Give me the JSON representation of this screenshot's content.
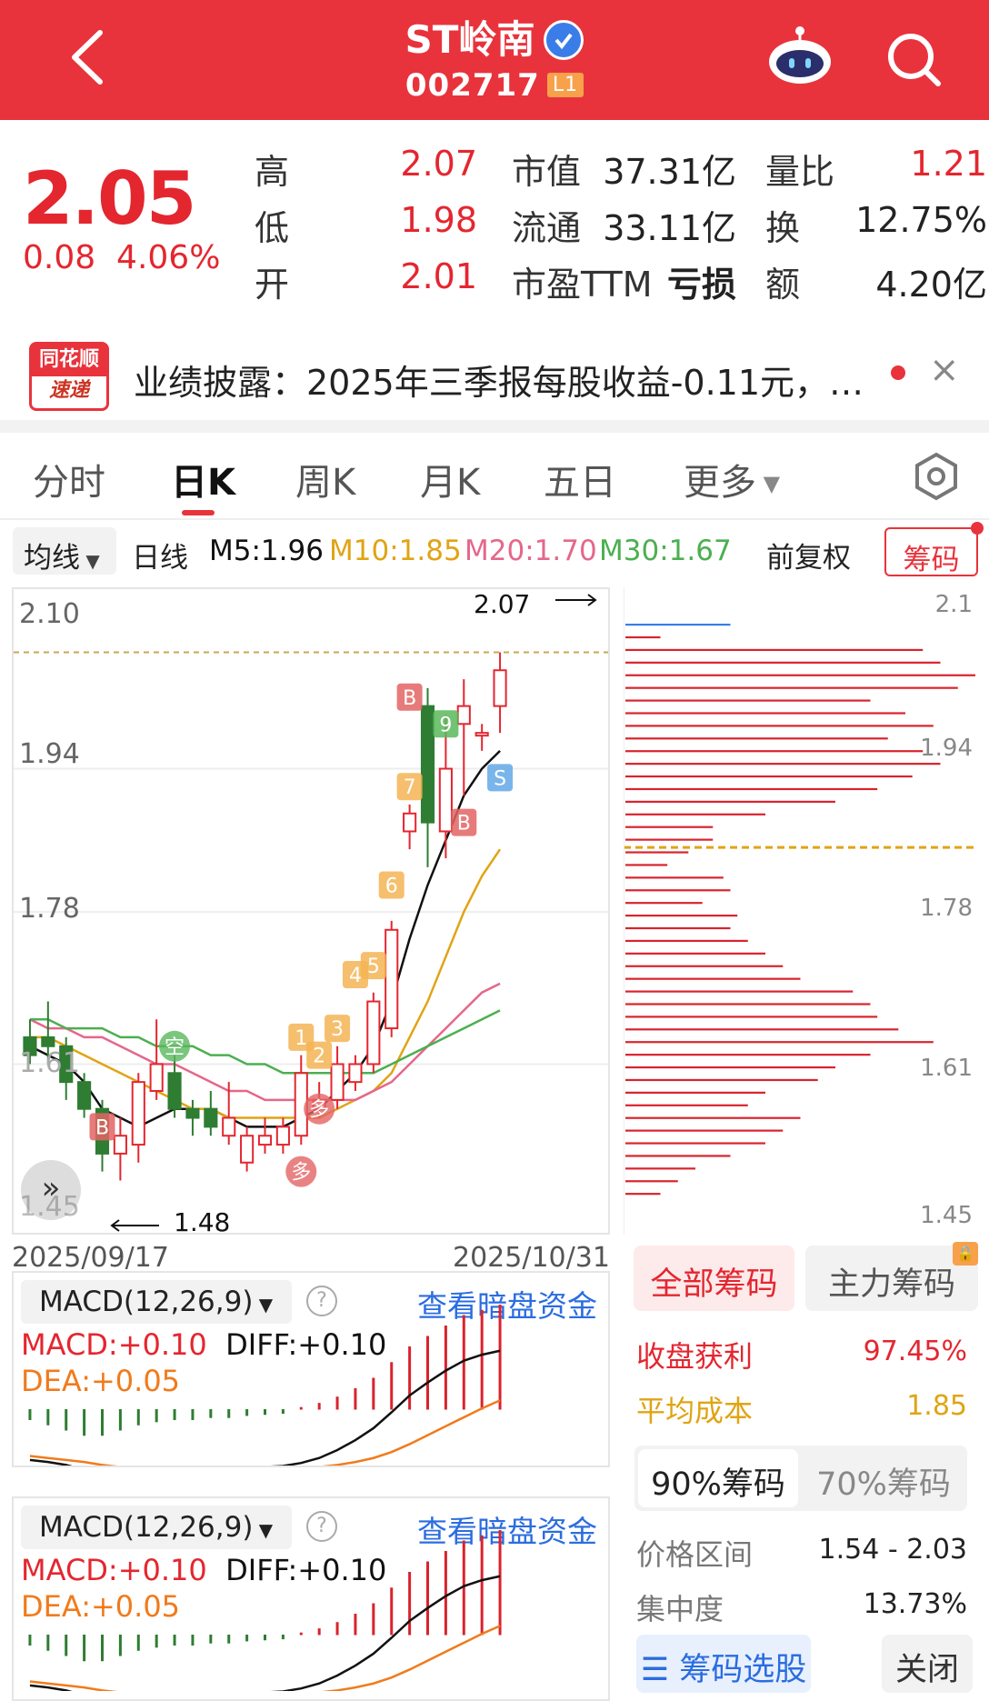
{
  "header": {
    "title": "ST岭南",
    "verified_icon": "verified-badge",
    "code": "002717",
    "level_badge": "L1",
    "back_icon": "chevron-left-icon",
    "robot_icon": "robot-assistant-icon",
    "search_icon": "search-icon"
  },
  "quote": {
    "price": "2.05",
    "change": "0.08",
    "change_pct": "4.06%",
    "rows": [
      {
        "l1": "高",
        "v1": "2.07",
        "l2": "市值",
        "v2": "37.31亿",
        "l3": "量比",
        "v3": "1.21"
      },
      {
        "l1": "低",
        "v1": "1.98",
        "l2": "流通",
        "v2": "33.11亿",
        "l3": "换",
        "v3": "12.75%"
      },
      {
        "l1": "开",
        "v1": "2.01",
        "l2": "市盈TTM",
        "v2": "亏损",
        "l3": "额",
        "v3": "4.20亿"
      }
    ],
    "colors": {
      "up": "#e4262f"
    }
  },
  "news": {
    "logo_top": "同花顺",
    "logo_bottom": "速递",
    "text": "业绩披露：2025年三季报每股收益-0.11元，…",
    "close": "×"
  },
  "tabs": [
    {
      "label": "分时"
    },
    {
      "label": "日K"
    },
    {
      "label": "周K"
    },
    {
      "label": "月K"
    },
    {
      "label": "五日"
    },
    {
      "label": "更多"
    }
  ],
  "settings_icon": "hexagon-settings-icon",
  "ma_bar": {
    "selector": "均线",
    "period": "日线",
    "m5": "M5:1.96",
    "m10": "M10:1.85",
    "m20": "M20:1.70",
    "m30": "M30:1.67",
    "adjust": "前复权",
    "chips_btn": "筹码",
    "colors": {
      "m5": "#111111",
      "m10": "#e0a414",
      "m20": "#e5678a",
      "m30": "#4caf50"
    }
  },
  "kchart": {
    "y_ticks": [
      "2.10",
      "1.94",
      "1.78",
      "1.61",
      "1.45"
    ],
    "high_label": "2.07",
    "low_label": "1.48",
    "date_start": "2025/09/17",
    "date_end": "2025/10/31",
    "markers": [
      "B",
      "9",
      "7",
      "6",
      "5",
      "4",
      "3",
      "2",
      "1",
      "B",
      "S",
      "B",
      "空",
      "多",
      "多"
    ]
  },
  "chart_data": {
    "type": "candlestick",
    "dates_range": [
      "2025/09/17",
      "2025/10/31"
    ],
    "ylim": [
      1.45,
      2.1
    ],
    "candles": [
      {
        "o": 1.64,
        "c": 1.62,
        "h": 1.66,
        "l": 1.61
      },
      {
        "o": 1.64,
        "c": 1.63,
        "h": 1.68,
        "l": 1.61
      },
      {
        "o": 1.63,
        "c": 1.59,
        "h": 1.64,
        "l": 1.57
      },
      {
        "o": 1.59,
        "c": 1.56,
        "h": 1.6,
        "l": 1.55
      },
      {
        "o": 1.56,
        "c": 1.51,
        "h": 1.57,
        "l": 1.49
      },
      {
        "o": 1.51,
        "c": 1.53,
        "h": 1.55,
        "l": 1.48
      },
      {
        "o": 1.52,
        "c": 1.59,
        "h": 1.6,
        "l": 1.5
      },
      {
        "o": 1.58,
        "c": 1.61,
        "h": 1.66,
        "l": 1.57
      },
      {
        "o": 1.6,
        "c": 1.56,
        "h": 1.62,
        "l": 1.55
      },
      {
        "o": 1.56,
        "c": 1.55,
        "h": 1.57,
        "l": 1.53
      },
      {
        "o": 1.56,
        "c": 1.54,
        "h": 1.58,
        "l": 1.53
      },
      {
        "o": 1.53,
        "c": 1.55,
        "h": 1.59,
        "l": 1.52
      },
      {
        "o": 1.5,
        "c": 1.53,
        "h": 1.54,
        "l": 1.49
      },
      {
        "o": 1.52,
        "c": 1.53,
        "h": 1.55,
        "l": 1.51
      },
      {
        "o": 1.52,
        "c": 1.54,
        "h": 1.55,
        "l": 1.51
      },
      {
        "o": 1.53,
        "c": 1.6,
        "h": 1.62,
        "l": 1.52
      },
      {
        "o": 1.56,
        "c": 1.57,
        "h": 1.59,
        "l": 1.55
      },
      {
        "o": 1.57,
        "c": 1.61,
        "h": 1.63,
        "l": 1.56
      },
      {
        "o": 1.59,
        "c": 1.61,
        "h": 1.62,
        "l": 1.58
      },
      {
        "o": 1.61,
        "c": 1.68,
        "h": 1.69,
        "l": 1.6
      },
      {
        "o": 1.65,
        "c": 1.76,
        "h": 1.77,
        "l": 1.64
      },
      {
        "o": 1.87,
        "c": 1.89,
        "h": 1.9,
        "l": 1.85
      },
      {
        "o": 2.01,
        "c": 1.88,
        "h": 2.03,
        "l": 1.83
      },
      {
        "o": 1.87,
        "c": 1.94,
        "h": 2.0,
        "l": 1.84
      },
      {
        "o": 1.99,
        "c": 2.01,
        "h": 2.04,
        "l": 1.91
      },
      {
        "o": 1.98,
        "c": 1.98,
        "h": 1.99,
        "l": 1.96
      },
      {
        "o": 2.01,
        "c": 2.05,
        "h": 2.07,
        "l": 1.98
      }
    ],
    "series": [
      {
        "name": "M5",
        "values": [
          1.63,
          1.62,
          1.61,
          1.59,
          1.56,
          1.55,
          1.54,
          1.55,
          1.56,
          1.56,
          1.56,
          1.55,
          1.54,
          1.54,
          1.54,
          1.55,
          1.56,
          1.58,
          1.6,
          1.63,
          1.68,
          1.75,
          1.81,
          1.86,
          1.91,
          1.94,
          1.96
        ]
      },
      {
        "name": "M10",
        "values": [
          1.64,
          1.64,
          1.63,
          1.62,
          1.61,
          1.6,
          1.59,
          1.58,
          1.57,
          1.56,
          1.56,
          1.55,
          1.55,
          1.55,
          1.55,
          1.55,
          1.55,
          1.56,
          1.57,
          1.58,
          1.6,
          1.64,
          1.68,
          1.73,
          1.78,
          1.82,
          1.85
        ]
      },
      {
        "name": "M20",
        "values": [
          1.66,
          1.65,
          1.65,
          1.64,
          1.64,
          1.63,
          1.62,
          1.61,
          1.61,
          1.6,
          1.59,
          1.58,
          1.58,
          1.57,
          1.57,
          1.57,
          1.57,
          1.57,
          1.57,
          1.58,
          1.59,
          1.61,
          1.63,
          1.65,
          1.67,
          1.69,
          1.7
        ]
      },
      {
        "name": "M30",
        "values": [
          1.66,
          1.66,
          1.65,
          1.65,
          1.65,
          1.64,
          1.64,
          1.63,
          1.63,
          1.63,
          1.62,
          1.62,
          1.61,
          1.61,
          1.6,
          1.6,
          1.6,
          1.6,
          1.6,
          1.6,
          1.61,
          1.62,
          1.63,
          1.64,
          1.65,
          1.66,
          1.67
        ]
      }
    ],
    "chip_distribution_note": "horizontal bars by price level",
    "chip_ticks": [
      "2.1",
      "1.94",
      "1.78",
      "1.61",
      "1.45"
    ],
    "chip_bars": [
      0.3,
      0.1,
      0.85,
      0.9,
      1.0,
      0.95,
      0.7,
      0.8,
      0.88,
      0.75,
      0.85,
      0.9,
      0.82,
      0.72,
      0.6,
      0.4,
      0.25,
      0.25,
      0.18,
      0.12,
      0.28,
      0.3,
      0.22,
      0.32,
      0.3,
      0.35,
      0.4,
      0.45,
      0.5,
      0.65,
      0.7,
      0.72,
      0.78,
      0.88,
      0.7,
      0.6,
      0.55,
      0.4,
      0.35,
      0.5,
      0.45,
      0.4,
      0.3,
      0.2,
      0.15,
      0.1
    ],
    "macd": {
      "hist": [
        -0.01,
        -0.015,
        -0.02,
        -0.025,
        -0.025,
        -0.02,
        -0.015,
        -0.012,
        -0.01,
        -0.01,
        -0.008,
        -0.008,
        -0.006,
        -0.005,
        -0.004,
        0.002,
        0.006,
        0.012,
        0.02,
        0.03,
        0.045,
        0.06,
        0.07,
        0.08,
        0.09,
        0.095,
        0.1
      ],
      "diff": [
        -0.01,
        -0.012,
        -0.015,
        -0.02,
        -0.025,
        -0.028,
        -0.028,
        -0.026,
        -0.024,
        -0.022,
        -0.02,
        -0.019,
        -0.018,
        -0.017,
        -0.016,
        -0.013,
        -0.008,
        0.0,
        0.01,
        0.022,
        0.038,
        0.055,
        0.068,
        0.08,
        0.09,
        0.096,
        0.1
      ],
      "dea": [
        -0.006,
        -0.008,
        -0.01,
        -0.012,
        -0.015,
        -0.017,
        -0.019,
        -0.02,
        -0.021,
        -0.021,
        -0.021,
        -0.021,
        -0.02,
        -0.02,
        -0.019,
        -0.018,
        -0.017,
        -0.015,
        -0.012,
        -0.008,
        -0.002,
        0.006,
        0.015,
        0.024,
        0.033,
        0.042,
        0.05
      ]
    }
  },
  "macd_panels": [
    {
      "selector": "MACD(12,26,9)",
      "link": "查看暗盘资金",
      "macd": "MACD:+0.10",
      "diff": "DIFF:+0.10",
      "dea": "DEA:+0.05"
    },
    {
      "selector": "MACD(12,26,9)",
      "link": "查看暗盘资金",
      "macd": "MACD:+0.10",
      "diff": "DIFF:+0.10",
      "dea": "DEA:+0.05"
    }
  ],
  "chips_panel": {
    "tab_all": "全部筹码",
    "tab_main": "主力筹码",
    "profit_label": "收盘获利",
    "profit_value": "97.45%",
    "avgcost_label": "平均成本",
    "avgcost_value": "1.85",
    "tab_90": "90%筹码",
    "tab_70": "70%筹码",
    "range_label": "价格区间",
    "range_value": "1.54 - 2.03",
    "conc_label": "集中度",
    "conc_value": "13.73%",
    "select_btn": "筹码选股",
    "close_btn": "关闭"
  }
}
